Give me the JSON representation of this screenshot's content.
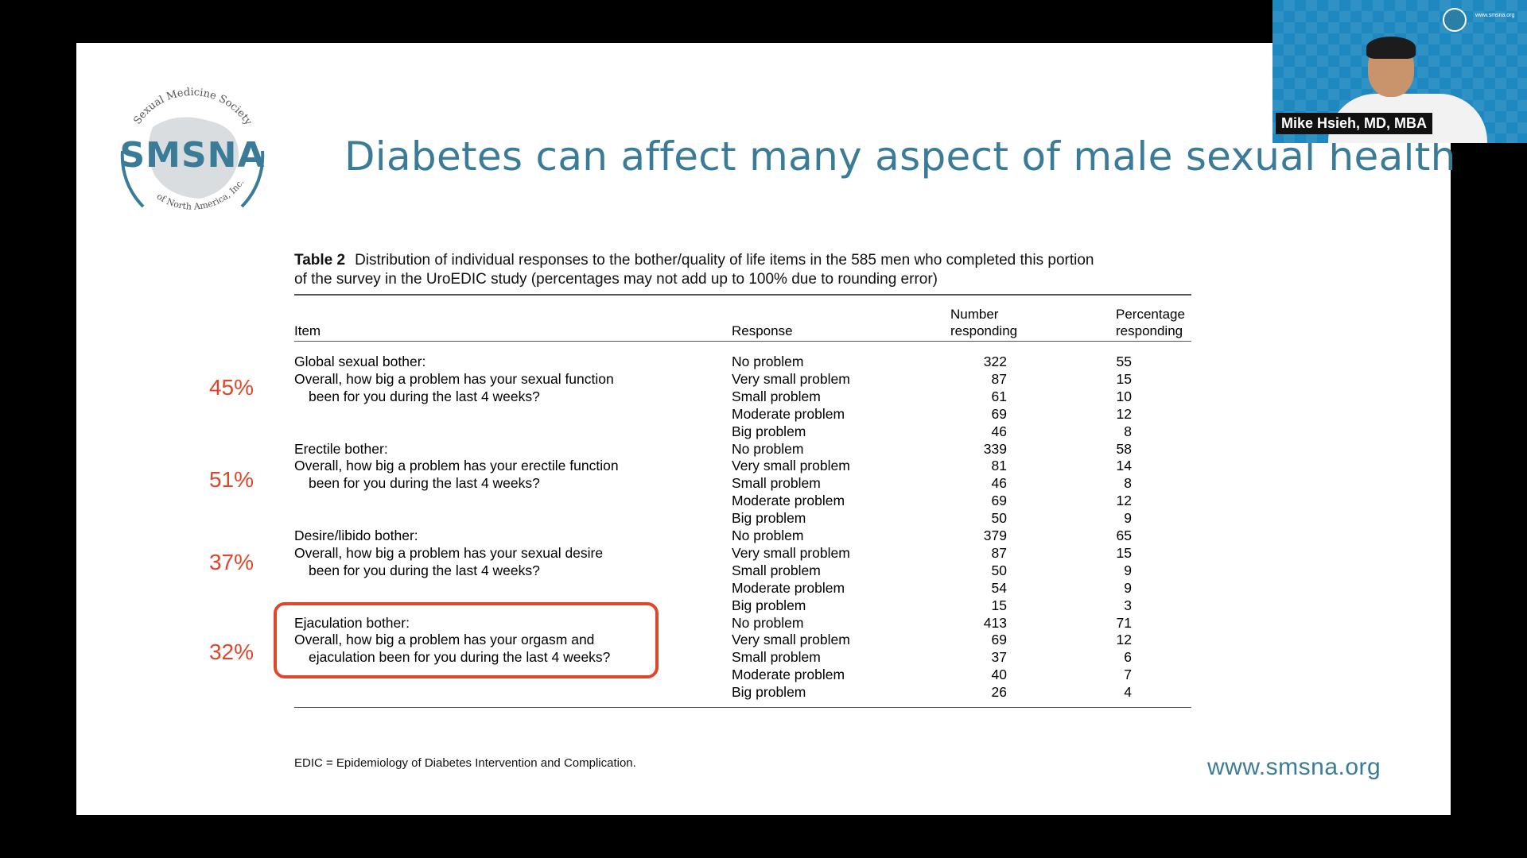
{
  "slide": {
    "logo": {
      "text": "SMSNA",
      "arc_top": "Sexual Medicine Society",
      "arc_bottom": "of North America, Inc."
    },
    "title": "Diabetes can affect many aspect of male sexual health",
    "table": {
      "caption_label": "Table 2",
      "caption_line1": "Distribution of individual responses to the bother/quality of life items in the 585 men who completed this portion",
      "caption_line2": "of the survey in the UroEDIC study (percentages may not add up to 100% due to rounding error)",
      "headers": {
        "item": "Item",
        "response": "Response",
        "number_1": "Number",
        "number_2": "responding",
        "pct_1": "Percentage",
        "pct_2": "responding"
      },
      "groups": [
        {
          "title": "Global sexual bother:",
          "q1": "Overall, how big a problem has your sexual function",
          "q2": "been for you during the last 4 weeks?",
          "side_pct": "45%",
          "rows": [
            {
              "response": "No problem",
              "number": "322",
              "percent": "55"
            },
            {
              "response": "Very small problem",
              "number": "87",
              "percent": "15"
            },
            {
              "response": "Small problem",
              "number": "61",
              "percent": "10"
            },
            {
              "response": "Moderate problem",
              "number": "69",
              "percent": "12"
            },
            {
              "response": "Big problem",
              "number": "46",
              "percent": "8"
            }
          ]
        },
        {
          "title": "Erectile bother:",
          "q1": "Overall, how big a problem has your erectile function",
          "q2": "been for you during the last 4 weeks?",
          "side_pct": "51%",
          "rows": [
            {
              "response": "No problem",
              "number": "339",
              "percent": "58"
            },
            {
              "response": "Very small problem",
              "number": "81",
              "percent": "14"
            },
            {
              "response": "Small problem",
              "number": "46",
              "percent": "8"
            },
            {
              "response": "Moderate problem",
              "number": "69",
              "percent": "12"
            },
            {
              "response": "Big problem",
              "number": "50",
              "percent": "9"
            }
          ]
        },
        {
          "title": "Desire/libido bother:",
          "q1": "Overall, how big a problem has your sexual desire",
          "q2": "been for you during the last 4 weeks?",
          "side_pct": "37%",
          "rows": [
            {
              "response": "No problem",
              "number": "379",
              "percent": "65"
            },
            {
              "response": "Very small problem",
              "number": "87",
              "percent": "15"
            },
            {
              "response": "Small problem",
              "number": "50",
              "percent": "9"
            },
            {
              "response": "Moderate problem",
              "number": "54",
              "percent": "9"
            },
            {
              "response": "Big problem",
              "number": "15",
              "percent": "3"
            }
          ]
        },
        {
          "title": "Ejaculation bother:",
          "q1": "Overall, how big a problem has your orgasm and",
          "q2": "ejaculation been for you during the last 4 weeks?",
          "side_pct": "32%",
          "rows": [
            {
              "response": "No problem",
              "number": "413",
              "percent": "71"
            },
            {
              "response": "Very small problem",
              "number": "69",
              "percent": "12"
            },
            {
              "response": "Small problem",
              "number": "37",
              "percent": "6"
            },
            {
              "response": "Moderate problem",
              "number": "40",
              "percent": "7"
            },
            {
              "response": "Big problem",
              "number": "26",
              "percent": "4"
            }
          ]
        }
      ],
      "footnote": "EDIC = Epidemiology of Diabetes Intervention and Complication."
    },
    "url": "www.smsna.org"
  },
  "webcam": {
    "name": "Mike Hsieh, MD, MBA",
    "badge": "SMSNA",
    "url": "www.smsna.org"
  },
  "colors": {
    "brand": "#3a7c97",
    "highlight": "#e0462a"
  }
}
